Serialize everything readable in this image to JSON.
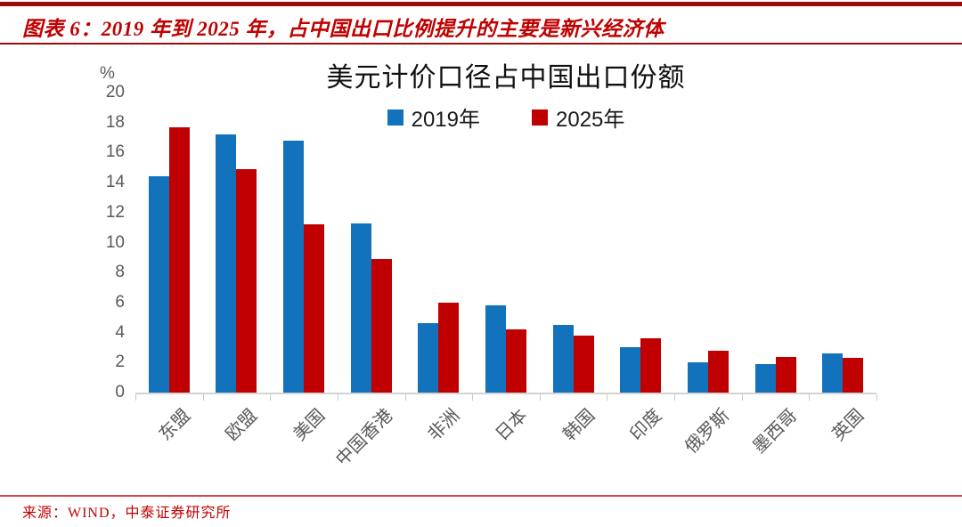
{
  "header": {
    "title": "图表 6：2019 年到 2025 年，占中国出口比例提升的主要是新兴经济体"
  },
  "chart_data": {
    "type": "bar",
    "title": "美元计价口径占中国出口份额",
    "unit_label": "%",
    "categories": [
      "东盟",
      "欧盟",
      "美国",
      "中国香港",
      "非洲",
      "日本",
      "韩国",
      "印度",
      "俄罗斯",
      "墨西哥",
      "英国"
    ],
    "series": [
      {
        "name": "2019年",
        "color": "#1272BC",
        "values": [
          14.4,
          17.2,
          16.8,
          11.3,
          4.6,
          5.8,
          4.5,
          3.0,
          2.0,
          1.9,
          2.6
        ]
      },
      {
        "name": "2025年",
        "color": "#C00000",
        "values": [
          17.7,
          14.9,
          11.2,
          8.9,
          6.0,
          4.2,
          3.8,
          3.6,
          2.8,
          2.4,
          2.3
        ]
      }
    ],
    "ylim": [
      0,
      20
    ],
    "yticks": [
      0,
      2,
      4,
      6,
      8,
      10,
      12,
      14,
      16,
      18,
      20
    ],
    "legend_position": "top-center-inside",
    "grid": false
  },
  "colors": {
    "accent_red": "#C00000",
    "rule_dark_red": "#9C0A0A",
    "footer_rule_red": "#D84848",
    "axis_text_gray": "#595959",
    "axis_line_gray": "#D4D4D4"
  },
  "footer": {
    "source": "来源：WIND，中泰证券研究所"
  }
}
